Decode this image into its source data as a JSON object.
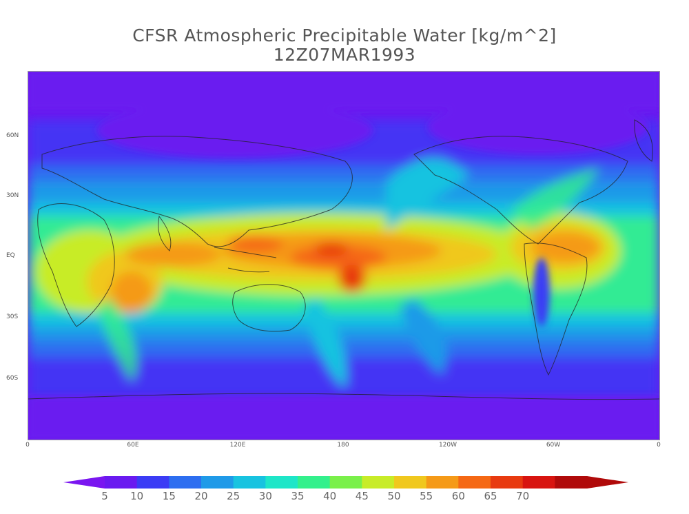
{
  "title": "CFSR Atmospheric Precipitable Water [kg/m^2]",
  "subtitle": "12Z07MAR1993",
  "lat_labels": [
    "60N",
    "30N",
    "EQ",
    "30S",
    "60S"
  ],
  "lon_labels": [
    "0",
    "60E",
    "120E",
    "180",
    "120W",
    "60W",
    "0"
  ],
  "colorbar": {
    "labels": [
      "5",
      "10",
      "15",
      "20",
      "25",
      "30",
      "35",
      "40",
      "45",
      "50",
      "55",
      "60",
      "65",
      "70"
    ],
    "colors": [
      "#6a1af0",
      "#3b3cf5",
      "#2d6ef0",
      "#1f9ae8",
      "#18c3e0",
      "#1ee6c8",
      "#33f08c",
      "#7af04a",
      "#c8ec28",
      "#f0c81e",
      "#f59a18",
      "#f56814",
      "#e83a10",
      "#d81410",
      "#b00a0a"
    ],
    "under_color": "#7a16f0",
    "over_color": "#b00a0a"
  }
}
